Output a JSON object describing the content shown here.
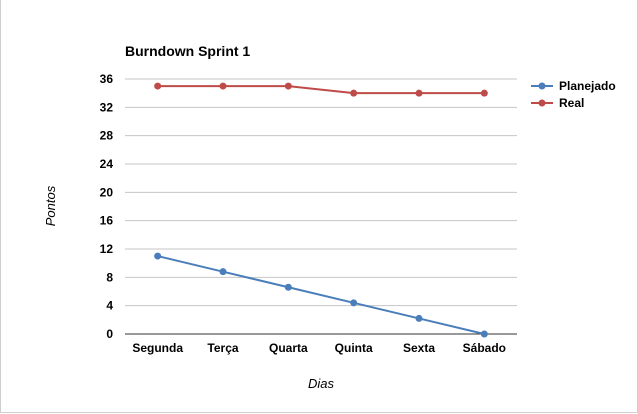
{
  "chart_data": {
    "type": "line",
    "title": "Burndown Sprint 1",
    "xlabel": "Dias",
    "ylabel": "Pontos",
    "categories": [
      "Segunda",
      "Terça",
      "Quarta",
      "Quinta",
      "Sexta",
      "Sábado"
    ],
    "ylim": [
      0,
      36
    ],
    "yticks": [
      "0",
      "4",
      "8",
      "12",
      "16",
      "20",
      "24",
      "28",
      "32",
      "36"
    ],
    "grid": true,
    "legend_position": "right",
    "series": [
      {
        "name": "Planejado",
        "color": "#4a7ebb",
        "values": [
          11,
          8.8,
          6.6,
          4.4,
          2.2,
          0
        ]
      },
      {
        "name": "Real",
        "color": "#be4b48",
        "values": [
          35,
          35,
          35,
          34,
          34,
          34
        ]
      }
    ]
  }
}
